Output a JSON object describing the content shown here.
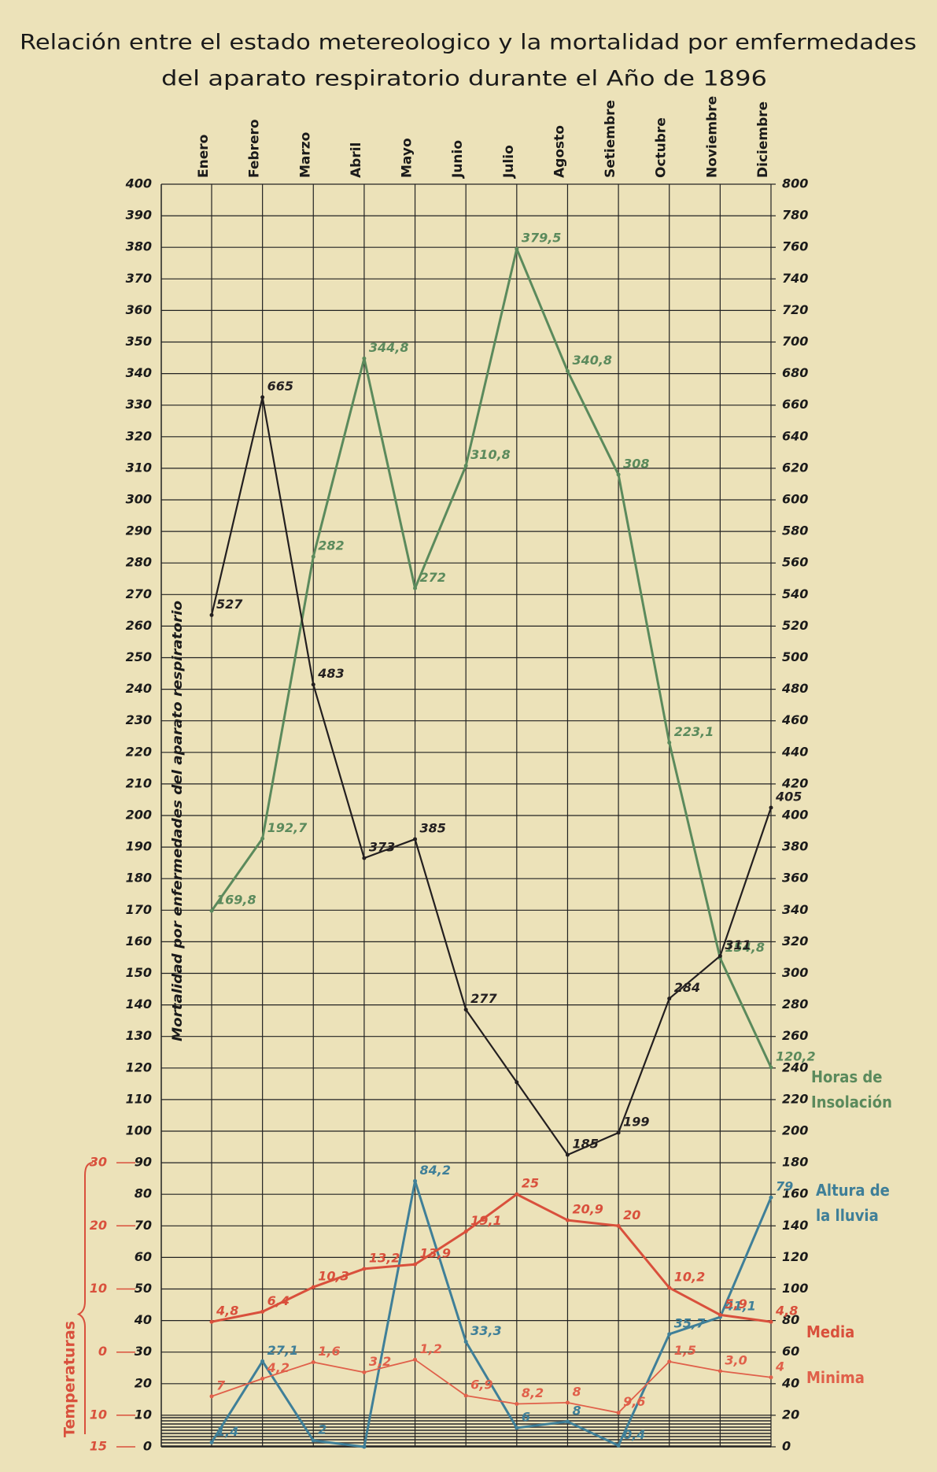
{
  "chart_data": {
    "type": "line",
    "title": "Relación entre el estado metereologico y la mortalidad por emfermedades",
    "subtitle": "del aparato respiratorio durante el Año de 1896",
    "ylabel": "Mortalidad por enfermedades del aparato respiratorio",
    "y3label": "Temperaturas",
    "categories": [
      "Enero",
      "Febrero",
      "Marzo",
      "Abril",
      "Mayo",
      "Junio",
      "Julio",
      "Agosto",
      "Setiembre",
      "Octubre",
      "Noviembre",
      "Diciembre"
    ],
    "ylim": [
      0,
      400
    ],
    "yticks": [
      0,
      10,
      20,
      30,
      40,
      50,
      60,
      70,
      80,
      90,
      100,
      110,
      120,
      130,
      140,
      150,
      160,
      170,
      180,
      190,
      200,
      210,
      220,
      230,
      240,
      250,
      260,
      270,
      280,
      290,
      300,
      310,
      320,
      330,
      340,
      350,
      360,
      370,
      380,
      390,
      400
    ],
    "y2lim": [
      0,
      800
    ],
    "y2ticks": [
      0,
      20,
      40,
      60,
      80,
      100,
      120,
      140,
      160,
      180,
      200,
      220,
      240,
      260,
      280,
      300,
      320,
      340,
      360,
      380,
      400,
      420,
      440,
      460,
      480,
      500,
      520,
      540,
      560,
      580,
      600,
      620,
      640,
      660,
      680,
      700,
      720,
      740,
      760,
      780,
      800
    ],
    "y3lim": [
      -15,
      30
    ],
    "y3ticks": [
      30,
      20,
      10,
      0,
      {
        "value": -10,
        "label": "10"
      },
      {
        "value": -15,
        "label": "15"
      }
    ],
    "grid": true,
    "series": [
      {
        "name": "Horas de Insolación",
        "color": "#5b8a5c",
        "axis": "y",
        "values": [
          169.8,
          192.7,
          282,
          344.8,
          272,
          310.8,
          379.5,
          340.8,
          308,
          223.1,
          154.8,
          120.2
        ],
        "value_labels": [
          "169,8",
          "192,7",
          "282",
          "344,8",
          "272",
          "310,8",
          "379,5",
          "340,8",
          "308",
          "223,1",
          "154,8",
          "120,2"
        ]
      },
      {
        "name": "Mortalidad",
        "color": "#231f20",
        "axis": "y2",
        "show_legend": false,
        "values": [
          527,
          665,
          483,
          373,
          385,
          277,
          231,
          185,
          199,
          284,
          311,
          405
        ],
        "value_labels": [
          "527",
          "665",
          "483",
          "373",
          "385",
          "277",
          null,
          "185",
          "199",
          "284",
          "311",
          "405"
        ]
      },
      {
        "name": "Altura de la lluvia",
        "color": "#3f7f98",
        "axis": "y",
        "values": [
          1.4,
          27.1,
          2,
          0,
          84.2,
          33.3,
          6,
          8,
          0.4,
          35.7,
          41.1,
          79
        ],
        "value_labels": [
          "1,4",
          "27,1",
          "2",
          null,
          "84,2",
          "33,3",
          "6",
          "8",
          "0,4",
          "35,7",
          "41,1",
          "79"
        ]
      },
      {
        "name": "Media",
        "color": "#d9503c",
        "axis": "y3",
        "values": [
          4.8,
          6.4,
          10.3,
          13.2,
          13.9,
          19.1,
          25,
          20.9,
          20,
          10.2,
          5.9,
          4.8
        ],
        "value_labels": [
          "4,8",
          "6,4",
          "10,3",
          "13,2",
          "13,9",
          "19,1",
          "25",
          "20,9",
          "20",
          "10,2",
          "5,9",
          "4,8"
        ]
      },
      {
        "name": "Minima",
        "color": "#e0604a",
        "axis": "y3",
        "values": [
          -7,
          -4.2,
          -1.6,
          -3.2,
          -1.2,
          -6.9,
          -8.2,
          -8,
          -9.6,
          -1.5,
          -3.0,
          -4
        ],
        "value_labels": [
          "7",
          "4,2",
          "1,6",
          "3,2",
          "1,2",
          "6,9",
          "8,2",
          "8",
          "9,6",
          "1,5",
          "3,0",
          "4"
        ]
      }
    ]
  }
}
